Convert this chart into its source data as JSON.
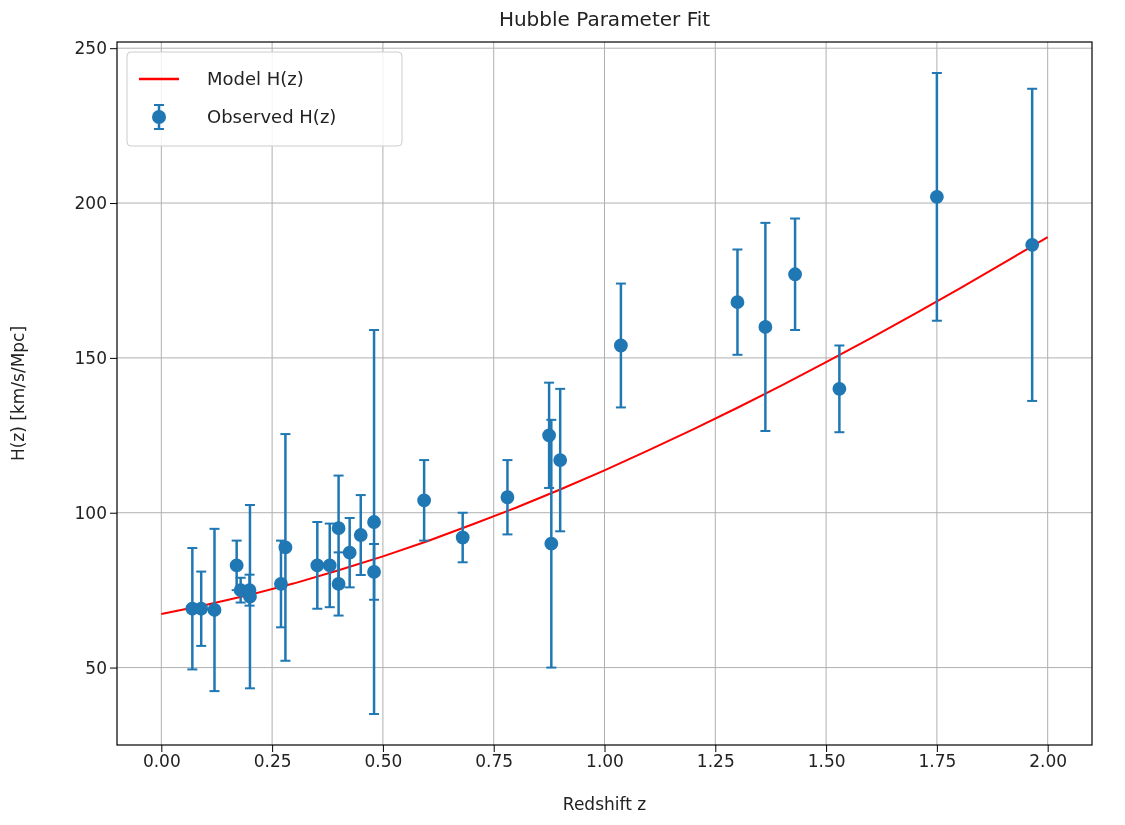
{
  "chart_data": {
    "type": "scatter",
    "title": "Hubble Parameter Fit",
    "xlabel": "Redshift z",
    "ylabel": "H(z) [km/s/Mpc]",
    "xlim": [
      -0.1,
      2.1
    ],
    "ylim": [
      25,
      252
    ],
    "xticks": [
      {
        "value": 0,
        "label": "0.00"
      },
      {
        "value": 0.25,
        "label": "0.25"
      },
      {
        "value": 0.5,
        "label": "0.50"
      },
      {
        "value": 0.75,
        "label": "0.75"
      },
      {
        "value": 1,
        "label": "1.00"
      },
      {
        "value": 1.25,
        "label": "1.25"
      },
      {
        "value": 1.5,
        "label": "1.50"
      },
      {
        "value": 1.75,
        "label": "1.75"
      },
      {
        "value": 2,
        "label": "2.00"
      }
    ],
    "yticks": [
      50,
      100,
      150,
      200,
      250
    ],
    "grid": true,
    "legend": "top left",
    "series": [
      {
        "name": "Model H(z)",
        "type": "line",
        "color": "#ff0000",
        "marker": "none",
        "line_style": "solid",
        "x": [
          0,
          0.1,
          0.2,
          0.3,
          0.4,
          0.5,
          0.6,
          0.7,
          0.8,
          0.9,
          1.0,
          1.1,
          1.2,
          1.3,
          1.4,
          1.5,
          1.6,
          1.7,
          1.8,
          1.9,
          2.0
        ],
        "values": [
          67.3,
          70.2,
          73.5,
          77.2,
          81.4,
          85.9,
          90.8,
          96.1,
          101.6,
          107.5,
          113.7,
          120.2,
          126.9,
          133.9,
          141.1,
          148.6,
          156.3,
          164.2,
          172.3,
          180.6,
          189.0
        ]
      },
      {
        "name": "Observed H(z)",
        "color": "#1f77b4",
        "marker": "circle",
        "x": [
          0.07,
          0.09,
          0.12,
          0.17,
          0.179,
          0.199,
          0.2,
          0.27,
          0.28,
          0.352,
          0.38,
          0.4,
          0.4,
          0.425,
          0.45,
          0.48,
          0.48,
          0.593,
          0.68,
          0.781,
          0.875,
          0.88,
          0.9,
          1.037,
          1.3,
          1.363,
          1.43,
          1.53,
          1.75,
          1.965
        ],
        "values": [
          69,
          69,
          68.6,
          83,
          75,
          75,
          72.9,
          77,
          88.8,
          83,
          83,
          95,
          77,
          87.1,
          92.8,
          80.9,
          97,
          104,
          92,
          105,
          125,
          90,
          117,
          154,
          168,
          160,
          177,
          140,
          202,
          186.5
        ],
        "errors": [
          19.6,
          12,
          26.2,
          8,
          4,
          5,
          29.6,
          14,
          36.6,
          14,
          13.5,
          17,
          10.2,
          11.2,
          12.9,
          9,
          62,
          13,
          8,
          12,
          17,
          40,
          23,
          20,
          17,
          33.6,
          18,
          14,
          40,
          50.4
        ]
      }
    ]
  }
}
